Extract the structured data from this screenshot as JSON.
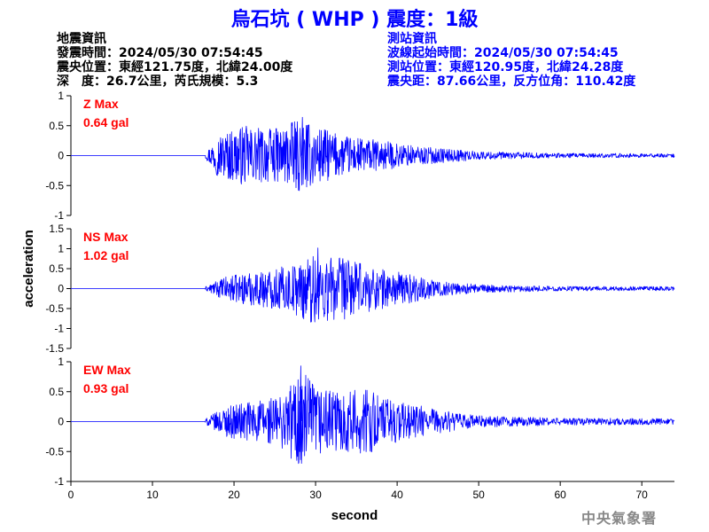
{
  "title": "烏石坑 ( WHP ) 震度：1級",
  "quake_info": {
    "heading": "地震資訊",
    "origin_time": "發震時間：2024/05/30 07:54:45",
    "epicenter": "震央位置：東經121.75度，北緯24.00度",
    "depth_mag": "深　度：26.7公里，芮氏規模：5.3"
  },
  "station_info": {
    "heading": "測站資訊",
    "wave_start": "波線起始時間：2024/05/30 07:54:45",
    "location": "測站位置：東經120.95度，北緯24.28度",
    "distance": "震央距：87.66公里，反方位角：110.42度"
  },
  "credit": "中央氣象署",
  "colors": {
    "title": "#0000ff",
    "trace": "#0000ff",
    "label": "#ff0000",
    "axis": "#000000"
  },
  "chart_data": [
    {
      "type": "line",
      "component": "Z",
      "label": "Z Max",
      "max_text": "0.64 gal",
      "peak": 0.64,
      "ylim": [
        -1,
        1
      ],
      "yticks": [
        -1,
        -0.5,
        0,
        0.5,
        1
      ],
      "ytick_labels": [
        "-1",
        "-0.5",
        "0",
        "0.5",
        "1"
      ],
      "onset_s": 16.5,
      "peak_time_s": 28.3,
      "envelope": [
        [
          16.5,
          0.05
        ],
        [
          18,
          0.35
        ],
        [
          21,
          0.5
        ],
        [
          25,
          0.45
        ],
        [
          28,
          0.6
        ],
        [
          30,
          0.5
        ],
        [
          33,
          0.35
        ],
        [
          38,
          0.25
        ],
        [
          43,
          0.15
        ],
        [
          50,
          0.07
        ],
        [
          60,
          0.04
        ],
        [
          74,
          0.03
        ]
      ]
    },
    {
      "type": "line",
      "component": "NS",
      "label": "NS Max",
      "max_text": "1.02 gal",
      "peak": 1.02,
      "ylim": [
        -1.5,
        1.5
      ],
      "yticks": [
        -1.5,
        -1,
        -0.5,
        0,
        0.5,
        1,
        1.5
      ],
      "ytick_labels": [
        "-1.5",
        "-1",
        "-0.5",
        "0",
        "0.5",
        "1",
        "1.5"
      ],
      "onset_s": 16.5,
      "peak_time_s": 30.2,
      "envelope": [
        [
          16.5,
          0.05
        ],
        [
          19,
          0.3
        ],
        [
          23,
          0.45
        ],
        [
          27,
          0.6
        ],
        [
          30,
          0.95
        ],
        [
          33,
          0.8
        ],
        [
          37,
          0.55
        ],
        [
          41,
          0.4
        ],
        [
          45,
          0.2
        ],
        [
          50,
          0.1
        ],
        [
          60,
          0.06
        ],
        [
          74,
          0.05
        ]
      ]
    },
    {
      "type": "line",
      "component": "EW",
      "label": "EW Max",
      "max_text": "0.93 gal",
      "peak": 0.93,
      "ylim": [
        -1,
        1
      ],
      "yticks": [
        -1,
        -0.5,
        0,
        0.5,
        1
      ],
      "ytick_labels": [
        "-1",
        "-0.5",
        "0",
        "0.5",
        "1"
      ],
      "onset_s": 16.5,
      "peak_time_s": 28.1,
      "envelope": [
        [
          16.5,
          0.05
        ],
        [
          19,
          0.25
        ],
        [
          22,
          0.35
        ],
        [
          26,
          0.45
        ],
        [
          28,
          0.9
        ],
        [
          30,
          0.6
        ],
        [
          33,
          0.5
        ],
        [
          36,
          0.55
        ],
        [
          40,
          0.35
        ],
        [
          45,
          0.2
        ],
        [
          50,
          0.1
        ],
        [
          60,
          0.06
        ],
        [
          74,
          0.05
        ]
      ]
    }
  ],
  "x_axis": {
    "label": "second",
    "range": [
      0,
      74
    ],
    "ticks": [
      0,
      10,
      20,
      30,
      40,
      50,
      60,
      70
    ],
    "tick_labels": [
      "0",
      "10",
      "20",
      "30",
      "40",
      "50",
      "60",
      "70"
    ]
  },
  "y_axis_label": "acceleration"
}
